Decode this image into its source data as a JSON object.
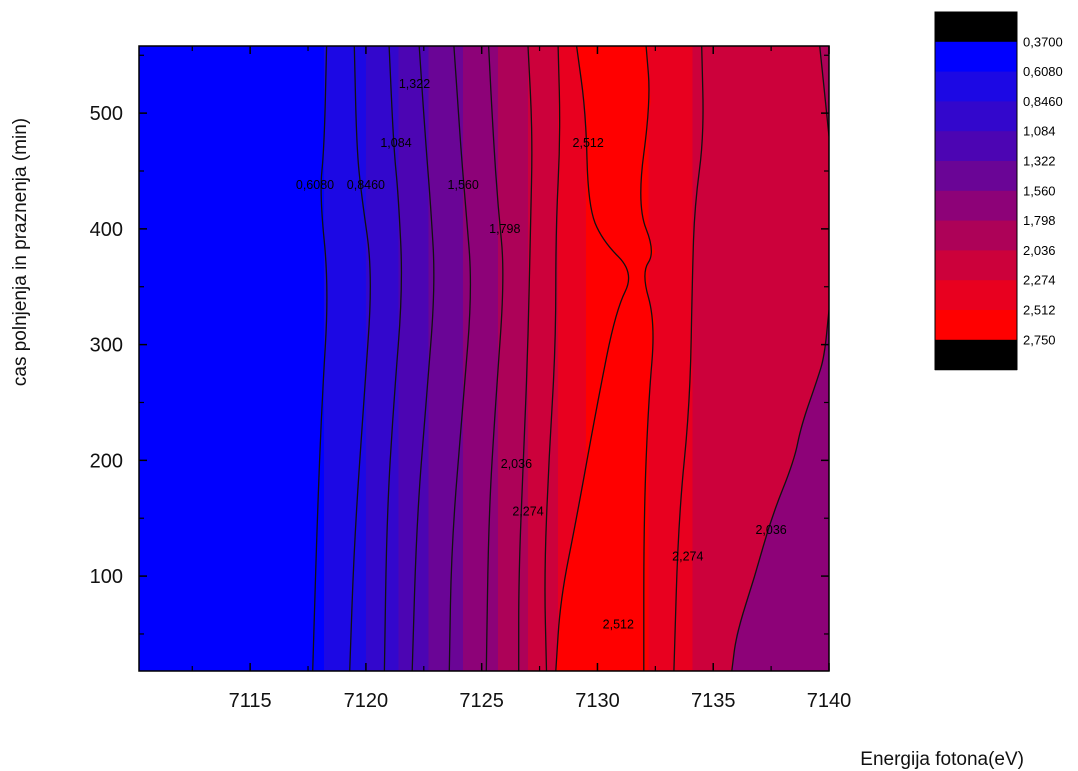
{
  "chart_data": {
    "type": "contour",
    "title": "",
    "xlabel": "Energija fotona(eV)",
    "ylabel": "cas polnjenja in praznenja (min)",
    "xlim": [
      7110.2,
      7140
    ],
    "ylim": [
      18,
      558
    ],
    "xticks": [
      7115,
      7120,
      7125,
      7130,
      7135,
      7140
    ],
    "xtick_labels": [
      "7115",
      "7120",
      "7125",
      "7130",
      "7135",
      "7140"
    ],
    "yticks": [
      100,
      200,
      300,
      400,
      500
    ],
    "ytick_labels": [
      "100",
      "200",
      "300",
      "400",
      "500"
    ],
    "grid": false,
    "legend_position": "top-right",
    "levels": [
      {
        "label": "0,3700",
        "color": "#000000"
      },
      {
        "label": "0,6080",
        "color": "#0000ff"
      },
      {
        "label": "0,8460",
        "color": "#1c08e4"
      },
      {
        "label": "1,084",
        "color": "#3307cc"
      },
      {
        "label": "1,322",
        "color": "#4c05b3"
      },
      {
        "label": "1,560",
        "color": "#6a0596"
      },
      {
        "label": "1,798",
        "color": "#8d0278"
      },
      {
        "label": "2,036",
        "color": "#ad0258"
      },
      {
        "label": "2,274",
        "color": "#cc013b"
      },
      {
        "label": "2,512",
        "color": "#e8001f"
      },
      {
        "label": "2,750",
        "color": "#ff0000"
      },
      {
        "label": "",
        "color": "#000000"
      }
    ],
    "contour_lines": [
      {
        "level": "0,6080",
        "points": [
          [
            7118.3,
            558
          ],
          [
            7118.2,
            470
          ],
          [
            7118.0,
            430
          ],
          [
            7118.4,
            350
          ],
          [
            7118.1,
            250
          ],
          [
            7117.9,
            150
          ],
          [
            7117.7,
            18
          ]
        ]
      },
      {
        "level": "0,8460",
        "points": [
          [
            7119.5,
            558
          ],
          [
            7119.6,
            470
          ],
          [
            7119.8,
            430
          ],
          [
            7120.3,
            360
          ],
          [
            7119.9,
            250
          ],
          [
            7119.5,
            130
          ],
          [
            7119.3,
            18
          ]
        ]
      },
      {
        "level": "1,084",
        "points": [
          [
            7121.0,
            558
          ],
          [
            7121.2,
            470
          ],
          [
            7121.4,
            430
          ],
          [
            7121.6,
            350
          ],
          [
            7121.2,
            250
          ],
          [
            7120.9,
            150
          ],
          [
            7120.8,
            18
          ]
        ]
      },
      {
        "level": "1,322",
        "points": [
          [
            7122.3,
            558
          ],
          [
            7122.6,
            470
          ],
          [
            7122.8,
            420
          ],
          [
            7123.0,
            350
          ],
          [
            7122.6,
            250
          ],
          [
            7122.2,
            150
          ],
          [
            7122.0,
            18
          ]
        ]
      },
      {
        "level": "1,560",
        "points": [
          [
            7123.8,
            558
          ],
          [
            7124.1,
            470
          ],
          [
            7124.3,
            420
          ],
          [
            7124.6,
            350
          ],
          [
            7124.2,
            250
          ],
          [
            7123.7,
            130
          ],
          [
            7123.6,
            18
          ]
        ]
      },
      {
        "level": "1,798",
        "points": [
          [
            7125.3,
            558
          ],
          [
            7125.5,
            480
          ],
          [
            7125.7,
            420
          ],
          [
            7126.0,
            360
          ],
          [
            7125.6,
            250
          ],
          [
            7125.3,
            150
          ],
          [
            7125.2,
            18
          ]
        ]
      },
      {
        "level": "2,036",
        "points": [
          [
            7127.0,
            558
          ],
          [
            7127.2,
            480
          ],
          [
            7127.1,
            400
          ],
          [
            7127.0,
            300
          ],
          [
            7126.8,
            200
          ],
          [
            7126.6,
            100
          ],
          [
            7126.6,
            18
          ]
        ]
      },
      {
        "level": "2,274",
        "points": [
          [
            7128.3,
            558
          ],
          [
            7128.4,
            480
          ],
          [
            7128.2,
            400
          ],
          [
            7128.2,
            300
          ],
          [
            7127.9,
            200
          ],
          [
            7127.7,
            100
          ],
          [
            7127.8,
            18
          ]
        ]
      },
      {
        "level": "2,512",
        "points": [
          [
            7129.1,
            558
          ],
          [
            7129.5,
            500
          ],
          [
            7129.6,
            420
          ],
          [
            7130.2,
            390
          ],
          [
            7131.6,
            362
          ],
          [
            7130.8,
            330
          ],
          [
            7130.0,
            250
          ],
          [
            7129.1,
            150
          ],
          [
            7128.4,
            80
          ],
          [
            7128.2,
            18
          ]
        ]
      },
      {
        "level": "2,512",
        "points": [
          [
            7132.1,
            558
          ],
          [
            7132.3,
            510
          ],
          [
            7131.7,
            420
          ],
          [
            7132.5,
            380
          ],
          [
            7131.9,
            362
          ],
          [
            7132.5,
            320
          ],
          [
            7132.2,
            250
          ],
          [
            7132.0,
            150
          ],
          [
            7132.0,
            18
          ]
        ]
      },
      {
        "level": "2,274",
        "points": [
          [
            7134.5,
            558
          ],
          [
            7134.6,
            480
          ],
          [
            7134.2,
            420
          ],
          [
            7134.1,
            360
          ],
          [
            7134.0,
            250
          ],
          [
            7133.5,
            150
          ],
          [
            7133.3,
            18
          ]
        ]
      },
      {
        "level": "2,036",
        "points": [
          [
            7139.6,
            558
          ],
          [
            7139.9,
            500
          ],
          [
            7140.0,
            480
          ]
        ]
      },
      {
        "level": "2,036",
        "points": [
          [
            7140.0,
            330
          ],
          [
            7139.8,
            290
          ],
          [
            7139.5,
            270
          ],
          [
            7138.8,
            230
          ],
          [
            7138.5,
            200
          ],
          [
            7137.5,
            150
          ],
          [
            7136.8,
            100
          ],
          [
            7136.0,
            50
          ],
          [
            7135.8,
            18
          ]
        ]
      }
    ],
    "contour_labels": [
      {
        "text": "1,322",
        "x": 7122.1,
        "y": 525
      },
      {
        "text": "1,084",
        "x": 7121.3,
        "y": 474
      },
      {
        "text": "0,6080",
        "x": 7117.8,
        "y": 438
      },
      {
        "text": "0,8460",
        "x": 7120.0,
        "y": 438
      },
      {
        "text": "1,560",
        "x": 7124.2,
        "y": 438
      },
      {
        "text": "1,798",
        "x": 7126.0,
        "y": 400
      },
      {
        "text": "2,512",
        "x": 7129.6,
        "y": 474
      },
      {
        "text": "2,036",
        "x": 7126.5,
        "y": 197
      },
      {
        "text": "2,274",
        "x": 7127.0,
        "y": 156
      },
      {
        "text": "2,274",
        "x": 7133.9,
        "y": 117
      },
      {
        "text": "2,036",
        "x": 7137.5,
        "y": 140
      },
      {
        "text": "2,512",
        "x": 7130.9,
        "y": 58
      }
    ]
  }
}
